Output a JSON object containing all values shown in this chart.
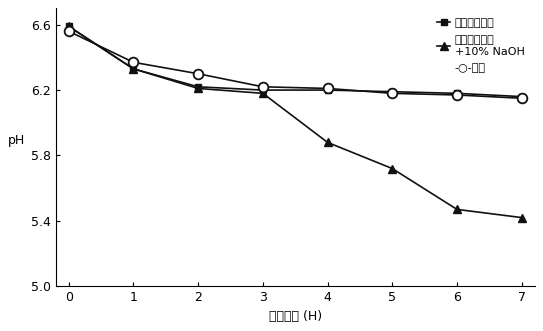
{
  "x": [
    0,
    1,
    2,
    3,
    4,
    5,
    6,
    7
  ],
  "series1_y": [
    6.59,
    6.33,
    6.22,
    6.2,
    6.2,
    6.19,
    6.18,
    6.16
  ],
  "series2_y": [
    6.59,
    6.33,
    6.21,
    6.18,
    5.88,
    5.72,
    5.47,
    5.42
  ],
  "series3_y": [
    6.56,
    6.37,
    6.3,
    6.22,
    6.21,
    6.18,
    6.17,
    6.15
  ],
  "series1_label": "グレープ果汁",
  "series2_label": "グレープ果汁\n+10% NaOH",
  "series3_label": "対照",
  "xlabel": "発酵時間 (H)",
  "ylabel": "pH",
  "ylim": [
    5.0,
    6.7
  ],
  "xlim": [
    -0.2,
    7.2
  ],
  "yticks": [
    5.0,
    5.4,
    5.8,
    6.2,
    6.6
  ],
  "xticks": [
    0,
    1,
    2,
    3,
    4,
    5,
    6,
    7
  ],
  "line_color": "#111111",
  "bg_color": "#ffffff",
  "figsize": [
    5.43,
    3.31
  ],
  "dpi": 100
}
